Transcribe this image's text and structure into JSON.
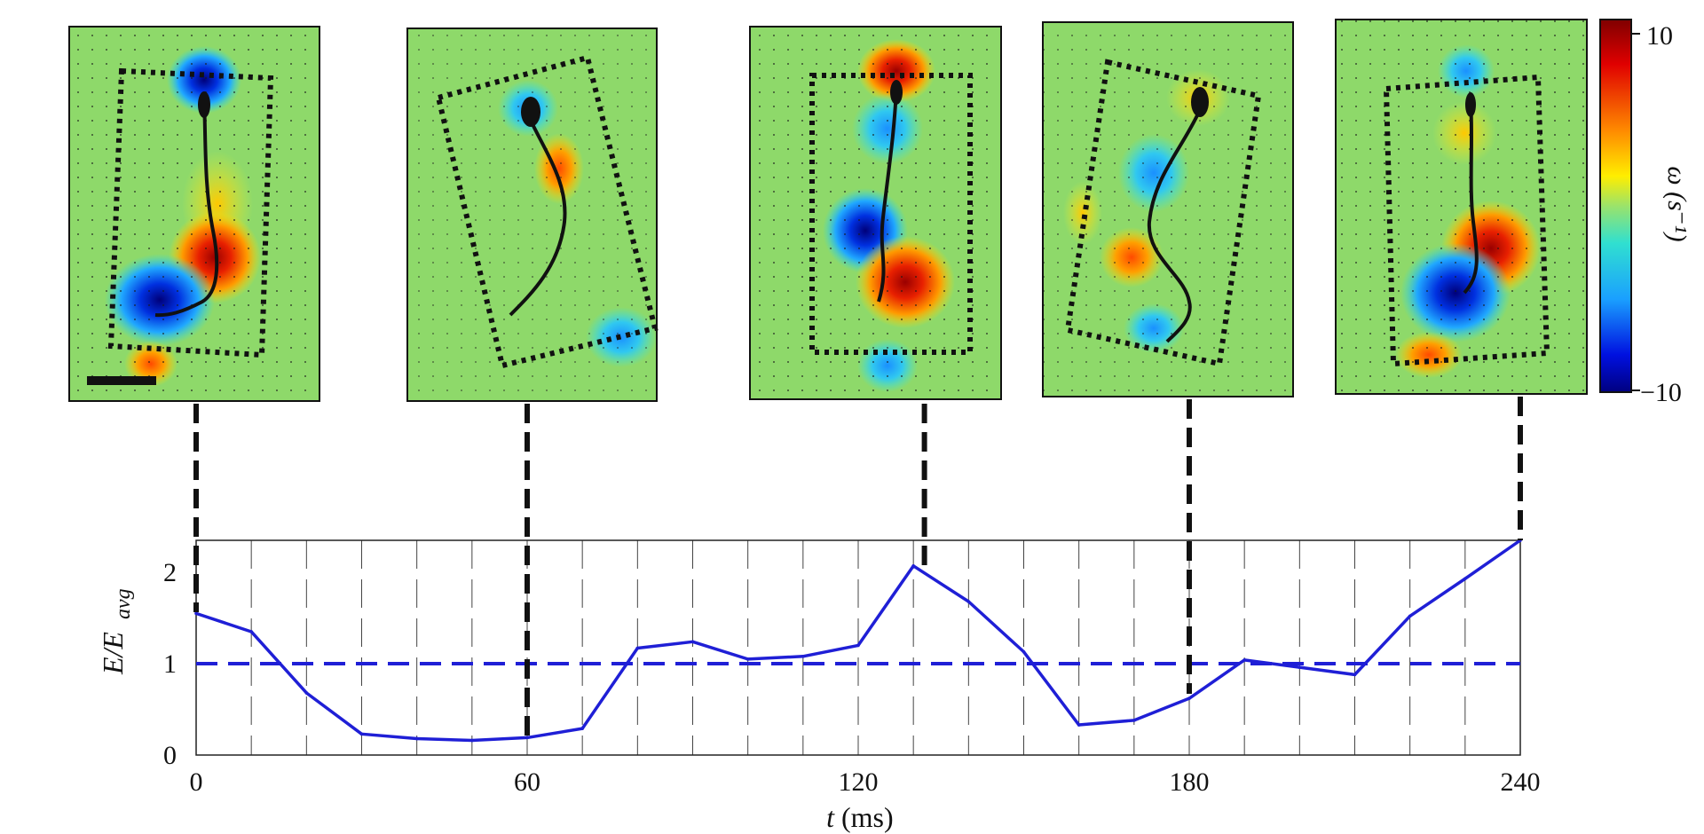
{
  "chart_data": {
    "type": "line",
    "ylabel_main": "E/E",
    "ylabel_sub": "avg",
    "xlabel_var": "t",
    "xlabel_unit": "(ms)",
    "xlim": [
      0,
      240
    ],
    "ylim": [
      0,
      2.35
    ],
    "x_ticks": [
      0,
      60,
      120,
      180,
      240
    ],
    "y_ticks": [
      0,
      1,
      2
    ],
    "grid": "vertical dashed, every 10 ms",
    "series": [
      {
        "name": "E/Eavg",
        "color": "#1f1fd6",
        "x": [
          0,
          10,
          20,
          30,
          40,
          50,
          60,
          70,
          80,
          90,
          100,
          110,
          120,
          130,
          140,
          150,
          160,
          170,
          180,
          190,
          200,
          210,
          220,
          230,
          240
        ],
        "y": [
          1.55,
          1.35,
          0.68,
          0.23,
          0.18,
          0.16,
          0.19,
          0.29,
          1.17,
          1.24,
          1.05,
          1.08,
          1.2,
          2.07,
          1.68,
          1.13,
          0.33,
          0.38,
          0.62,
          1.04,
          0.96,
          0.88,
          1.52,
          1.93,
          2.35
        ]
      }
    ],
    "reference_line": {
      "y": 1,
      "style": "dashed",
      "color": "#1f1fd6"
    },
    "snapshot_times": [
      0,
      60,
      132,
      180,
      240
    ],
    "colorbar": {
      "label": "ω (s⁻¹)",
      "max_label": "10",
      "min_label": "−10",
      "range": [
        -10,
        10
      ]
    }
  }
}
